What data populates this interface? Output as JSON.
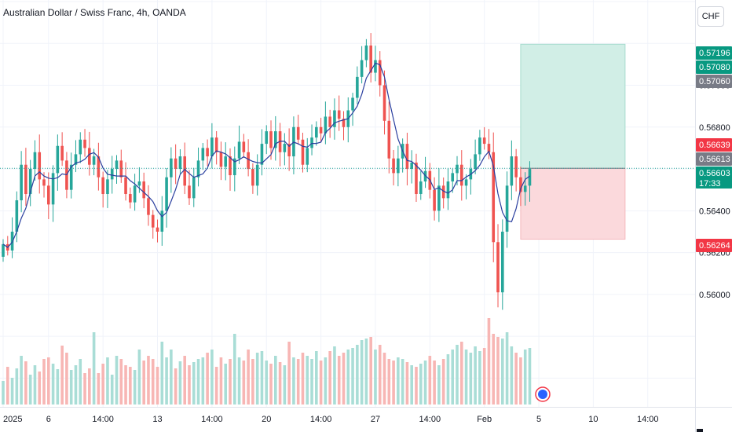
{
  "header": {
    "title": "Australian Dollar / Swiss Franc, 4h, OANDA",
    "currency_button": "CHF"
  },
  "chart_data": {
    "type": "candlestick",
    "title": "Australian Dollar / Swiss Franc, 4h, OANDA",
    "ylim": [
      0.555,
      0.574
    ],
    "y_ticks": [
      "0.56000",
      "0.56200",
      "0.56400",
      "0.56800",
      "0.57000"
    ],
    "x_ticks": [
      {
        "label": "2025",
        "slot": 0
      },
      {
        "label": "6",
        "slot": 10
      },
      {
        "label": "14:00",
        "slot": 22
      },
      {
        "label": "13",
        "slot": 34
      },
      {
        "label": "14:00",
        "slot": 46
      },
      {
        "label": "20",
        "slot": 58
      },
      {
        "label": "14:00",
        "slot": 70
      },
      {
        "label": "27",
        "slot": 82
      },
      {
        "label": "14:00",
        "slot": 94
      },
      {
        "label": "Feb",
        "slot": 106
      },
      {
        "label": "5",
        "slot": 118
      },
      {
        "label": "10",
        "slot": 130
      },
      {
        "label": "14:00",
        "slot": 142
      }
    ],
    "price_tags": [
      {
        "label": "0.57196",
        "value": 0.57196,
        "color": "#089981"
      },
      {
        "label": "0.57080",
        "value": 0.5708,
        "color": "#089981"
      },
      {
        "label": "0.57060",
        "value": 0.5706,
        "color": "#787b86"
      },
      {
        "label": "0.56639",
        "value": 0.56639,
        "color": "#f23645"
      },
      {
        "label": "0.56613",
        "value": 0.56613,
        "color": "#787b86"
      },
      {
        "label": "0.56603",
        "countdown": "17:33",
        "value": 0.56603,
        "color": "#089981"
      },
      {
        "label": "0.56264",
        "value": 0.56264,
        "color": "#f23645"
      }
    ],
    "position": {
      "entry": 0.56603,
      "target": 0.57196,
      "stop": 0.56264,
      "start_slot": 114,
      "end_slot": 137
    },
    "colors": {
      "up": "#26a69a",
      "down": "#ef5350",
      "ma": "#2a3f9f",
      "profit_zone": "#d1eee6",
      "loss_zone": "#fbd9dc",
      "current_price_line": "#26a69a"
    },
    "closes": [
      0.5624,
      0.5621,
      0.563,
      0.5645,
      0.5662,
      0.5648,
      0.566,
      0.5668,
      0.5655,
      0.5652,
      0.5643,
      0.5658,
      0.5671,
      0.5664,
      0.565,
      0.5662,
      0.5667,
      0.5674,
      0.567,
      0.5662,
      0.5666,
      0.5656,
      0.5648,
      0.5655,
      0.566,
      0.5664,
      0.5656,
      0.5648,
      0.5644,
      0.5652,
      0.5654,
      0.5646,
      0.5638,
      0.5632,
      0.563,
      0.564,
      0.5656,
      0.5665,
      0.566,
      0.5666,
      0.5652,
      0.5646,
      0.5656,
      0.5664,
      0.567,
      0.5666,
      0.5675,
      0.5668,
      0.5661,
      0.5666,
      0.5657,
      0.5665,
      0.5673,
      0.5668,
      0.566,
      0.5652,
      0.5662,
      0.5672,
      0.5678,
      0.567,
      0.5678,
      0.5668,
      0.5672,
      0.5666,
      0.568,
      0.5674,
      0.5662,
      0.567,
      0.5675,
      0.568,
      0.5677,
      0.5685,
      0.568,
      0.5688,
      0.5684,
      0.568,
      0.5688,
      0.5694,
      0.5704,
      0.5712,
      0.5719,
      0.5706,
      0.5712,
      0.57,
      0.5683,
      0.5665,
      0.5658,
      0.5665,
      0.5672,
      0.566,
      0.5663,
      0.5648,
      0.5654,
      0.5659,
      0.565,
      0.564,
      0.5652,
      0.5646,
      0.5654,
      0.5658,
      0.5662,
      0.5652,
      0.5655,
      0.566,
      0.5667,
      0.5675,
      0.5672,
      0.5668,
      0.5625,
      0.5601,
      0.563,
      0.5652,
      0.5666,
      0.5656,
      0.5649,
      0.5652,
      0.566
    ],
    "volumes": [
      30,
      48,
      34,
      46,
      62,
      55,
      38,
      50,
      42,
      58,
      60,
      52,
      45,
      75,
      66,
      44,
      50,
      58,
      40,
      46,
      92,
      40,
      52,
      60,
      38,
      62,
      58,
      50,
      48,
      44,
      70,
      56,
      62,
      58,
      48,
      80,
      60,
      70,
      46,
      55,
      62,
      50,
      54,
      58,
      60,
      66,
      70,
      48,
      60,
      52,
      58,
      90,
      60,
      56,
      70,
      58,
      66,
      68,
      56,
      52,
      62,
      54,
      50,
      80,
      60,
      58,
      66,
      62,
      58,
      68,
      56,
      60,
      68,
      74,
      62,
      66,
      70,
      72,
      76,
      82,
      84,
      86,
      70,
      76,
      66,
      58,
      56,
      60,
      58,
      54,
      50,
      48,
      52,
      56,
      62,
      56,
      50,
      58,
      64,
      70,
      76,
      80,
      70,
      66,
      74,
      68,
      72,
      110,
      90,
      86,
      84,
      92,
      74,
      66,
      60,
      70,
      72
    ]
  }
}
